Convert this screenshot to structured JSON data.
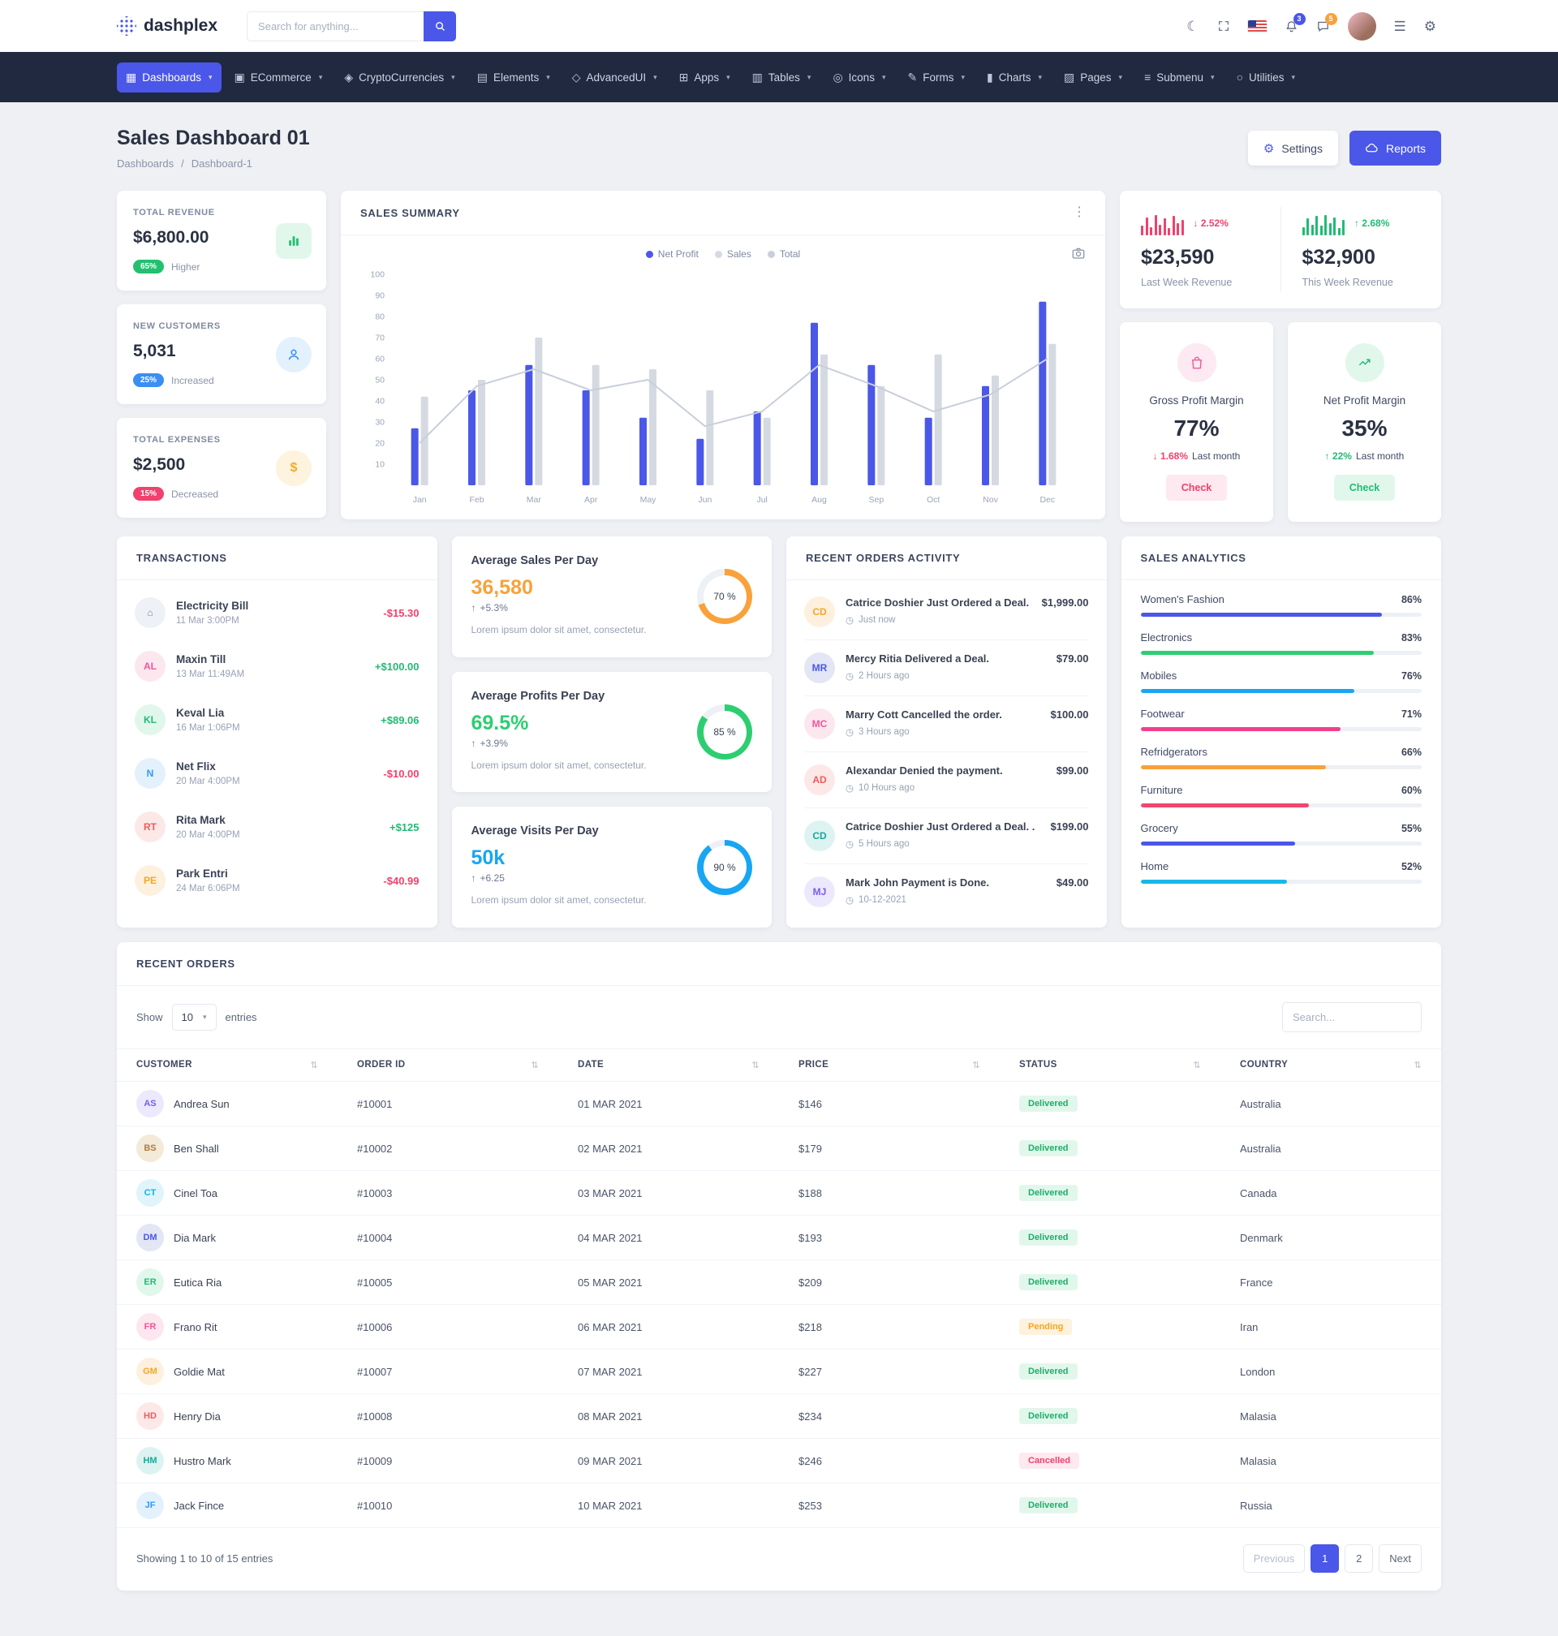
{
  "topbar": {
    "logo_text": "dashplex",
    "search_placeholder": "Search for anything...",
    "bell_badge": "3",
    "chat_badge": "5"
  },
  "glyphs": {
    "moon": "☾",
    "menu": "☰",
    "gear": "⚙",
    "kebab": "⋮",
    "sort": "⇅",
    "clock": "◷",
    "up_arrow": "↑",
    "dollar": "$",
    "caret": "▾"
  },
  "nav": {
    "items": [
      {
        "label": "Dashboards",
        "glyph": "▦"
      },
      {
        "label": "ECommerce",
        "glyph": "▣"
      },
      {
        "label": "CryptoCurrencies",
        "glyph": "◈"
      },
      {
        "label": "Elements",
        "glyph": "▤"
      },
      {
        "label": "AdvancedUI",
        "glyph": "◇"
      },
      {
        "label": "Apps",
        "glyph": "⊞"
      },
      {
        "label": "Tables",
        "glyph": "▥"
      },
      {
        "label": "Icons",
        "glyph": "◎"
      },
      {
        "label": "Forms",
        "glyph": "✎"
      },
      {
        "label": "Charts",
        "glyph": "▮"
      },
      {
        "label": "Pages",
        "glyph": "▨"
      },
      {
        "label": "Submenu",
        "glyph": "≡"
      },
      {
        "label": "Utilities",
        "glyph": "○"
      }
    ]
  },
  "header": {
    "title": "Sales Dashboard 01",
    "breadcrumb_root": "Dashboards",
    "breadcrumb_sep": "/",
    "breadcrumb_current": "Dashboard-1",
    "settings_label": "Settings",
    "reports_label": "Reports"
  },
  "stats": {
    "revenue": {
      "label": "TOTAL REVENUE",
      "value": "$6,800.00",
      "badge": "65%",
      "note": "Higher"
    },
    "customers": {
      "label": "NEW CUSTOMERS",
      "value": "5,031",
      "badge": "25%",
      "note": "Increased"
    },
    "expenses": {
      "label": "TOTAL EXPENSES",
      "value": "$2,500",
      "badge": "15%",
      "note": "Decreased"
    }
  },
  "sales_summary": {
    "title": "SALES SUMMARY"
  },
  "chart_data": {
    "type": "bar",
    "title": "SALES SUMMARY",
    "categories": [
      "Jan",
      "Feb",
      "Mar",
      "Apr",
      "May",
      "Jun",
      "Jul",
      "Aug",
      "Sep",
      "Oct",
      "Nov",
      "Dec"
    ],
    "series": [
      {
        "name": "Net Profit",
        "type": "bar",
        "color": "#4a57e8",
        "values": [
          27,
          45,
          57,
          45,
          32,
          22,
          35,
          77,
          57,
          32,
          47,
          87
        ]
      },
      {
        "name": "Sales",
        "type": "bar",
        "color": "#d5dae2",
        "values": [
          42,
          50,
          70,
          57,
          55,
          45,
          32,
          62,
          47,
          62,
          52,
          67
        ]
      },
      {
        "name": "Total",
        "type": "line",
        "color": "#c9cfda",
        "values": [
          20,
          47,
          55,
          45,
          50,
          28,
          35,
          57,
          47,
          35,
          43,
          60
        ]
      }
    ],
    "ylim": [
      0,
      100
    ],
    "yticks": [
      10,
      20,
      30,
      40,
      50,
      60,
      70,
      80,
      90,
      100
    ],
    "legend_position": "top",
    "grid": false
  },
  "week_revenue": {
    "last": {
      "value": "$23,590",
      "label": "Last Week Revenue",
      "delta": "↓ 2.52%",
      "spark": [
        40,
        75,
        35,
        85,
        45,
        70,
        30,
        80,
        50,
        65
      ],
      "spark_color": "#f1416c"
    },
    "this": {
      "value": "$32,900",
      "label": "This Week Revenue",
      "delta": "↑ 2.68%",
      "spark": [
        35,
        70,
        45,
        80,
        40,
        85,
        50,
        75,
        30,
        65
      ],
      "spark_color": "#22ba74"
    }
  },
  "margins": {
    "gross": {
      "title": "Gross Profit Margin",
      "value": "77%",
      "delta": "↓ 1.68%",
      "note": "Last month",
      "action": "Check"
    },
    "net": {
      "title": "Net Profit Margin",
      "value": "35%",
      "delta": "↑ 22%",
      "note": "Last month",
      "action": "Check"
    }
  },
  "transactions": {
    "title": "TRANSACTIONS",
    "items": [
      {
        "avatar": "⌂",
        "tone": "gray",
        "name": "Electricity Bill",
        "date": "11 Mar 3:00PM",
        "amount": "-$15.30",
        "dir": "neg"
      },
      {
        "avatar": "AL",
        "tone": "pink",
        "name": "Maxin Till",
        "date": "13 Mar 11:49AM",
        "amount": "+$100.00",
        "dir": "pos"
      },
      {
        "avatar": "KL",
        "tone": "green",
        "name": "Keval Lia",
        "date": "16 Mar 1:06PM",
        "amount": "+$89.06",
        "dir": "pos"
      },
      {
        "avatar": "N",
        "tone": "blue",
        "name": "Net Flix",
        "date": "20 Mar 4:00PM",
        "amount": "-$10.00",
        "dir": "neg"
      },
      {
        "avatar": "RT",
        "tone": "red",
        "name": "Rita Mark",
        "date": "20 Mar 4:00PM",
        "amount": "+$125",
        "dir": "pos"
      },
      {
        "avatar": "PE",
        "tone": "orange",
        "name": "Park Entri",
        "date": "24 Mar 6:06PM",
        "amount": "-$40.99",
        "dir": "neg"
      }
    ]
  },
  "averages": {
    "items": [
      {
        "title": "Average Sales Per Day",
        "value": "36,580",
        "delta": "+5.3%",
        "desc": "Lorem ipsum dolor sit amet, consectetur.",
        "percent": 70,
        "donut_label": "70 %",
        "color": "#f9a13a"
      },
      {
        "title": "Average Profits Per Day",
        "value": "69.5%",
        "delta": "+3.9%",
        "desc": "Lorem ipsum dolor sit amet, consectetur.",
        "percent": 85,
        "donut_label": "85 %",
        "color": "#2dce71"
      },
      {
        "title": "Average Visits Per Day",
        "value": "50k",
        "delta": "+6.25",
        "desc": "Lorem ipsum dolor sit amet, consectetur.",
        "percent": 90,
        "donut_label": "90 %",
        "color": "#18a6f2"
      }
    ]
  },
  "activity": {
    "title": "RECENT ORDERS ACTIVITY",
    "items": [
      {
        "avatar": "CD",
        "tone": "orange",
        "text": "Catrice Doshier Just Ordered a Deal.",
        "time": "Just now",
        "amount": "$1,999.00"
      },
      {
        "avatar": "MR",
        "tone": "navy",
        "text": "Mercy Ritia Delivered a Deal.",
        "time": "2 Hours ago",
        "amount": "$79.00"
      },
      {
        "avatar": "MC",
        "tone": "pink",
        "text": "Marry Cott Cancelled the order.",
        "time": "3 Hours ago",
        "amount": "$100.00"
      },
      {
        "avatar": "AD",
        "tone": "red",
        "text": "Alexandar Denied the payment.",
        "time": "10 Hours ago",
        "amount": "$99.00"
      },
      {
        "avatar": "CD",
        "tone": "teal",
        "text": "Catrice Doshier Just Ordered a Deal. .",
        "time": "5 Hours ago",
        "amount": "$199.00"
      },
      {
        "avatar": "MJ",
        "tone": "purple",
        "text": "Mark John Payment is Done.",
        "time": "10-12-2021",
        "amount": "$49.00"
      }
    ]
  },
  "analytics": {
    "title": "SALES ANALYTICS",
    "items": [
      {
        "label": "Women's Fashion",
        "percent": 86,
        "display": "86%",
        "color": "#4a57e8"
      },
      {
        "label": "Electronics",
        "percent": 83,
        "display": "83%",
        "color": "#2dce71"
      },
      {
        "label": "Mobiles",
        "percent": 76,
        "display": "76%",
        "color": "#18a6f2"
      },
      {
        "label": "Footwear",
        "percent": 71,
        "display": "71%",
        "color": "#f0408c"
      },
      {
        "label": "Refridgerators",
        "percent": 66,
        "display": "66%",
        "color": "#f9a13a"
      },
      {
        "label": "Furniture",
        "percent": 60,
        "display": "60%",
        "color": "#ef476f"
      },
      {
        "label": "Grocery",
        "percent": 55,
        "display": "55%",
        "color": "#4a57e8"
      },
      {
        "label": "Home",
        "percent": 52,
        "display": "52%",
        "color": "#17b8e8"
      }
    ]
  },
  "orders": {
    "title": "RECENT ORDERS",
    "show_label": "Show",
    "page_size": "10",
    "entries_label": "entries",
    "search_placeholder": "Search...",
    "columns": [
      "CUSTOMER",
      "ORDER ID",
      "DATE",
      "PRICE",
      "STATUS",
      "COUNTRY"
    ],
    "rows": [
      {
        "avatar": "AS",
        "tone": "purple",
        "customer": "Andrea Sun",
        "order_id": "#10001",
        "date": "01 MAR 2021",
        "price": "$146",
        "status": "Delivered",
        "status_type": "success",
        "country": "Australia"
      },
      {
        "avatar": "BS",
        "tone": "brown",
        "customer": "Ben Shall",
        "order_id": "#10002",
        "date": "02 MAR 2021",
        "price": "$179",
        "status": "Delivered",
        "status_type": "success",
        "country": "Australia"
      },
      {
        "avatar": "CT",
        "tone": "cyan",
        "customer": "Cinel Toa",
        "order_id": "#10003",
        "date": "03 MAR 2021",
        "price": "$188",
        "status": "Delivered",
        "status_type": "success",
        "country": "Canada"
      },
      {
        "avatar": "DM",
        "tone": "navy",
        "customer": "Dia Mark",
        "order_id": "#10004",
        "date": "04 MAR 2021",
        "price": "$193",
        "status": "Delivered",
        "status_type": "success",
        "country": "Denmark"
      },
      {
        "avatar": "ER",
        "tone": "green",
        "customer": "Eutica Ria",
        "order_id": "#10005",
        "date": "05 MAR 2021",
        "price": "$209",
        "status": "Delivered",
        "status_type": "success",
        "country": "France"
      },
      {
        "avatar": "FR",
        "tone": "pink",
        "customer": "Frano Rit",
        "order_id": "#10006",
        "date": "06 MAR 2021",
        "price": "$218",
        "status": "Pending",
        "status_type": "warning",
        "country": "Iran"
      },
      {
        "avatar": "GM",
        "tone": "orange",
        "customer": "Goldie Mat",
        "order_id": "#10007",
        "date": "07 MAR 2021",
        "price": "$227",
        "status": "Delivered",
        "status_type": "success",
        "country": "London"
      },
      {
        "avatar": "HD",
        "tone": "red",
        "customer": "Henry Dia",
        "order_id": "#10008",
        "date": "08 MAR 2021",
        "price": "$234",
        "status": "Delivered",
        "status_type": "success",
        "country": "Malasia"
      },
      {
        "avatar": "HM",
        "tone": "teal",
        "customer": "Hustro Mark",
        "order_id": "#10009",
        "date": "09 MAR 2021",
        "price": "$246",
        "status": "Cancelled",
        "status_type": "danger",
        "country": "Malasia"
      },
      {
        "avatar": "JF",
        "tone": "blue",
        "customer": "Jack Fince",
        "order_id": "#10010",
        "date": "10 MAR 2021",
        "price": "$253",
        "status": "Delivered",
        "status_type": "success",
        "country": "Russia"
      }
    ],
    "footer_text": "Showing 1 to 10 of 15 entries",
    "pagination": {
      "prev": "Previous",
      "page1": "1",
      "page2": "2",
      "next": "Next"
    }
  }
}
